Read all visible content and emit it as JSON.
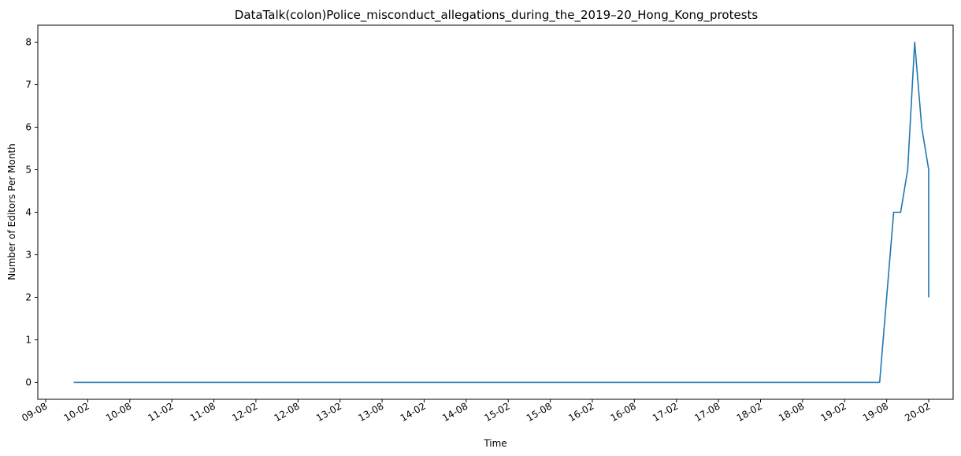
{
  "chart_data": {
    "type": "line",
    "title": "DataTalk(colon)Police_misconduct_allegations_during_the_2019–20_Hong_Kong_protests",
    "xlabel": "Time",
    "ylabel": "Number of Editors Per Month",
    "x_ticks": [
      "09-08",
      "10-02",
      "10-08",
      "11-02",
      "11-08",
      "12-02",
      "12-08",
      "13-02",
      "13-08",
      "14-02",
      "14-08",
      "15-02",
      "15-08",
      "16-02",
      "16-08",
      "17-02",
      "17-08",
      "18-02",
      "18-08",
      "19-02",
      "19-08",
      "20-02"
    ],
    "y_ticks": [
      0,
      1,
      2,
      3,
      4,
      5,
      6,
      7,
      8
    ],
    "ylim": [
      -0.4,
      8.4
    ],
    "grid": false,
    "legend": "none",
    "series": [
      {
        "color": "#1f77b4",
        "points": [
          {
            "x": "2009-12",
            "y": 0
          },
          {
            "x": "2019-07",
            "y": 0
          },
          {
            "x": "2019-08",
            "y": 2
          },
          {
            "x": "2019-09",
            "y": 4
          },
          {
            "x": "2019-10",
            "y": 4
          },
          {
            "x": "2019-11",
            "y": 5
          },
          {
            "x": "2019-12",
            "y": 8
          },
          {
            "x": "2020-01",
            "y": 6
          },
          {
            "x": "2020-02",
            "y": 5
          },
          {
            "x": "2020-02",
            "y": 2
          }
        ]
      }
    ]
  }
}
